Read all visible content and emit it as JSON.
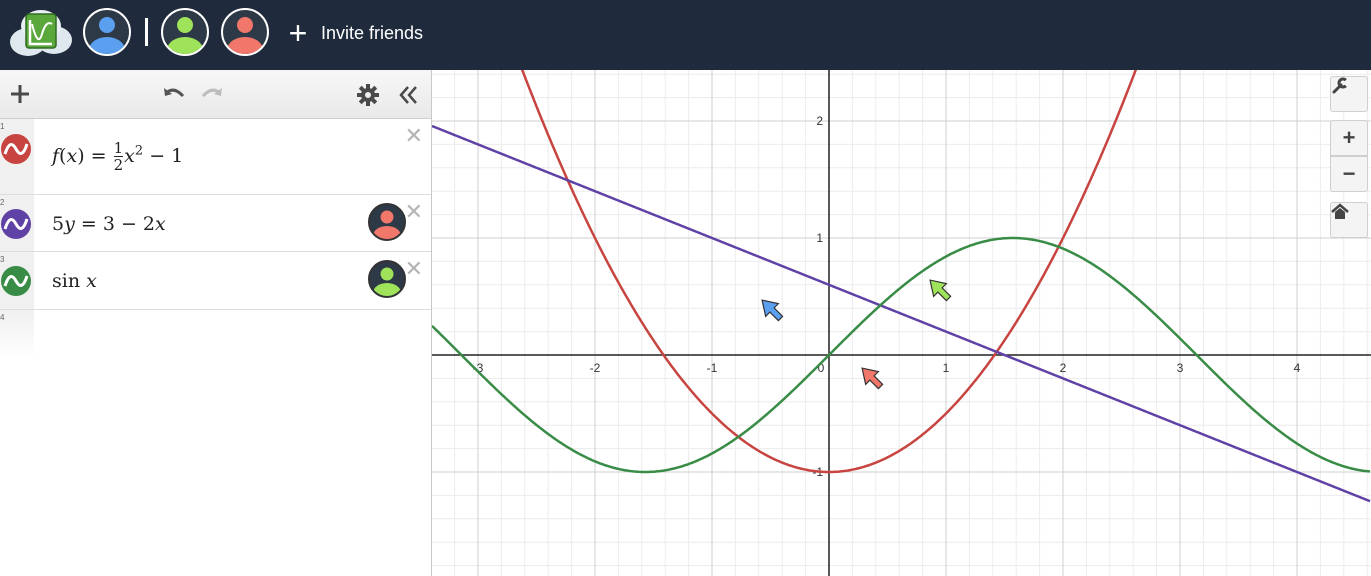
{
  "topbar": {
    "invite_label": "Invite friends",
    "participants": [
      {
        "name": "user-blue",
        "color": "#5b9ff0"
      },
      {
        "name": "user-green",
        "color": "#9ee35a"
      },
      {
        "name": "user-red",
        "color": "#f2776b"
      }
    ]
  },
  "toolbar": {
    "add_icon": "plus-icon",
    "undo_icon": "undo-icon",
    "redo_icon": "redo-icon",
    "settings_icon": "gear-icon",
    "collapse_icon": "double-chevron-left-icon"
  },
  "expressions": [
    {
      "index": "1",
      "color": "#c74440",
      "latex": "f(x) = ½x² − 1",
      "parts": {
        "fname": "f",
        "paren_open": "(",
        "var": "x",
        "paren_close": ")",
        "eq": " = ",
        "num": "1",
        "den": "2",
        "x": "x",
        "exp": "2",
        "tail": " − 1"
      }
    },
    {
      "index": "2",
      "color": "#6042a6",
      "text_a": "5",
      "text_y": "y",
      "text_b": " = 3 − 2",
      "text_x": "x",
      "editor_color": "#f2776b"
    },
    {
      "index": "3",
      "color": "#388c46",
      "text_fn": "sin ",
      "text_x": "x",
      "editor_color": "#9ee35a"
    },
    {
      "index": "4"
    }
  ],
  "graph": {
    "x_ticks": [
      "-3",
      "-2",
      "-1",
      "0",
      "1",
      "2",
      "3",
      "4"
    ],
    "y_ticks": [
      "2",
      "1",
      "-1"
    ],
    "cursors": [
      {
        "name": "cursor-blue",
        "color": "#5b9ff0"
      },
      {
        "name": "cursor-green",
        "color": "#9ee35a"
      },
      {
        "name": "cursor-red",
        "color": "#f2776b"
      }
    ],
    "controls": {
      "wrench_icon": "wrench-icon",
      "zoom_in": "+",
      "zoom_out": "−",
      "home_icon": "home-icon"
    }
  },
  "colors": {
    "topbar": "#1f2a3c",
    "red": "#c74440",
    "purple": "#6042a6",
    "green": "#388c46"
  }
}
